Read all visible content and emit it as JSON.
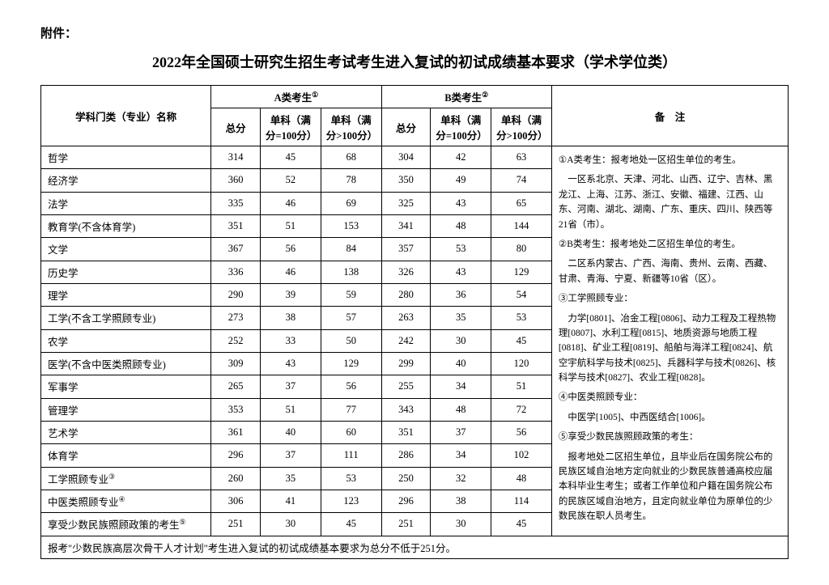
{
  "attachment_label": "附件：",
  "title": "2022年全国硕士研究生招生考试考生进入复试的初试成绩基本要求（学术学位类）",
  "header": {
    "subject": "学科门类（专业）名称",
    "groupA": "A类考生",
    "groupA_sup": "①",
    "groupB": "B类考生",
    "groupB_sup": "②",
    "remark": "备　注",
    "total": "总分",
    "sub1": "单科（满分=100分）",
    "sub2": "单科（满分>100分）"
  },
  "rows": [
    {
      "name": "哲学",
      "a_total": "314",
      "a_s1": "45",
      "a_s2": "68",
      "b_total": "304",
      "b_s1": "42",
      "b_s2": "63"
    },
    {
      "name": "经济学",
      "a_total": "360",
      "a_s1": "52",
      "a_s2": "78",
      "b_total": "350",
      "b_s1": "49",
      "b_s2": "74"
    },
    {
      "name": "法学",
      "a_total": "335",
      "a_s1": "46",
      "a_s2": "69",
      "b_total": "325",
      "b_s1": "43",
      "b_s2": "65"
    },
    {
      "name": "教育学(不含体育学)",
      "a_total": "351",
      "a_s1": "51",
      "a_s2": "153",
      "b_total": "341",
      "b_s1": "48",
      "b_s2": "144"
    },
    {
      "name": "文学",
      "a_total": "367",
      "a_s1": "56",
      "a_s2": "84",
      "b_total": "357",
      "b_s1": "53",
      "b_s2": "80"
    },
    {
      "name": "历史学",
      "a_total": "336",
      "a_s1": "46",
      "a_s2": "138",
      "b_total": "326",
      "b_s1": "43",
      "b_s2": "129"
    },
    {
      "name": "理学",
      "a_total": "290",
      "a_s1": "39",
      "a_s2": "59",
      "b_total": "280",
      "b_s1": "36",
      "b_s2": "54"
    },
    {
      "name": "工学(不含工学照顾专业)",
      "a_total": "273",
      "a_s1": "38",
      "a_s2": "57",
      "b_total": "263",
      "b_s1": "35",
      "b_s2": "53"
    },
    {
      "name": "农学",
      "a_total": "252",
      "a_s1": "33",
      "a_s2": "50",
      "b_total": "242",
      "b_s1": "30",
      "b_s2": "45"
    },
    {
      "name": "医学(不含中医类照顾专业)",
      "a_total": "309",
      "a_s1": "43",
      "a_s2": "129",
      "b_total": "299",
      "b_s1": "40",
      "b_s2": "120"
    },
    {
      "name": "军事学",
      "a_total": "265",
      "a_s1": "37",
      "a_s2": "56",
      "b_total": "255",
      "b_s1": "34",
      "b_s2": "51"
    },
    {
      "name": "管理学",
      "a_total": "353",
      "a_s1": "51",
      "a_s2": "77",
      "b_total": "343",
      "b_s1": "48",
      "b_s2": "72"
    },
    {
      "name": "艺术学",
      "a_total": "361",
      "a_s1": "40",
      "a_s2": "60",
      "b_total": "351",
      "b_s1": "37",
      "b_s2": "56"
    },
    {
      "name": "体育学",
      "a_total": "296",
      "a_s1": "37",
      "a_s2": "111",
      "b_total": "286",
      "b_s1": "34",
      "b_s2": "102"
    },
    {
      "name": "工学照顾专业",
      "sup": "③",
      "a_total": "260",
      "a_s1": "35",
      "a_s2": "53",
      "b_total": "250",
      "b_s1": "32",
      "b_s2": "48"
    },
    {
      "name": "中医类照顾专业",
      "sup": "④",
      "a_total": "306",
      "a_s1": "41",
      "a_s2": "123",
      "b_total": "296",
      "b_s1": "38",
      "b_s2": "114"
    },
    {
      "name": "享受少数民族照顾政策的考生",
      "sup": "⑤",
      "a_total": "251",
      "a_s1": "30",
      "a_s2": "45",
      "b_total": "251",
      "b_s1": "30",
      "b_s2": "45"
    }
  ],
  "remarks": [
    "①A类考生：报考地处一区招生单位的考生。",
    "　一区系北京、天津、河北、山西、辽宁、吉林、黑龙江、上海、江苏、浙江、安徽、福建、江西、山东、河南、湖北、湖南、广东、重庆、四川、陕西等21省（市）。",
    "②B类考生：报考地处二区招生单位的考生。",
    "　二区系内蒙古、广西、海南、贵州、云南、西藏、甘肃、青海、宁夏、新疆等10省（区）。",
    "③工学照顾专业：",
    "　力学[0801]、冶金工程[0806]、动力工程及工程热物理[0807]、水利工程[0815]、地质资源与地质工程[0818]、矿业工程[0819]、船舶与海洋工程[0824]、航空宇航科学与技术[0825]、兵器科学与技术[0826]、核科学与技术[0827]、农业工程[0828]。",
    "④中医类照顾专业：",
    "　中医学[1005]、中西医结合[1006]。",
    "⑤享受少数民族照顾政策的考生：",
    "　报考地处二区招生单位，且毕业后在国务院公布的民族区域自治地方定向就业的少数民族普通高校应届本科毕业生考生；或者工作单位和户籍在国务院公布的民族区域自治地方，且定向就业单位为原单位的少数民族在职人员考生。"
  ],
  "footer_note": "报考\"少数民族高层次骨干人才计划\"考生进入复试的初试成绩基本要求为总分不低于251分。",
  "style": {
    "background_color": "#ffffff",
    "text_color": "#000000",
    "border_color": "#000000",
    "title_fontsize": 18,
    "body_fontsize": 13,
    "cell_fontsize": 12.5,
    "remark_fontsize": 11.5
  }
}
